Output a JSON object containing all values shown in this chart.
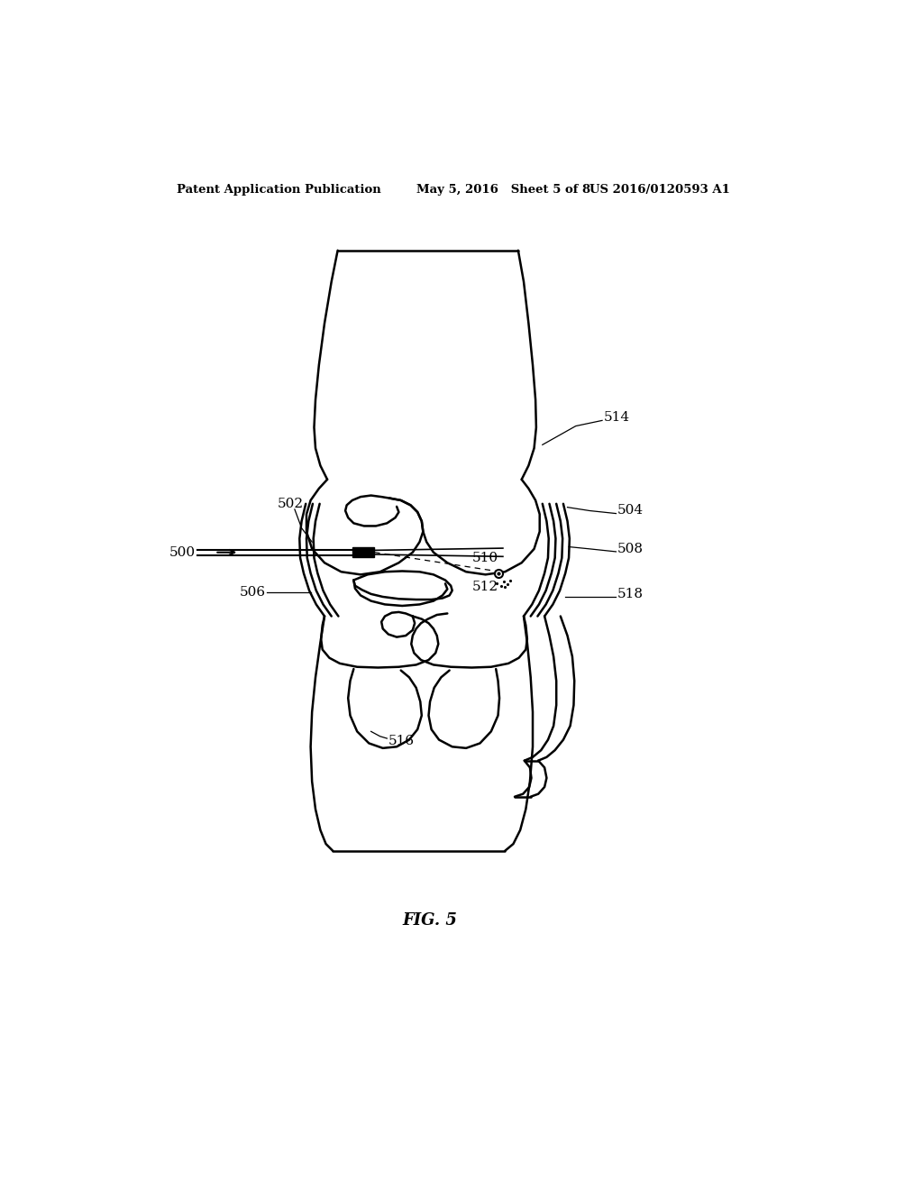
{
  "background_color": "#ffffff",
  "line_color": "#000000",
  "header_left": "Patent Application Publication",
  "header_mid": "May 5, 2016   Sheet 5 of 8",
  "header_right": "US 2016/0120593 A1",
  "fig_label": "FIG. 5"
}
